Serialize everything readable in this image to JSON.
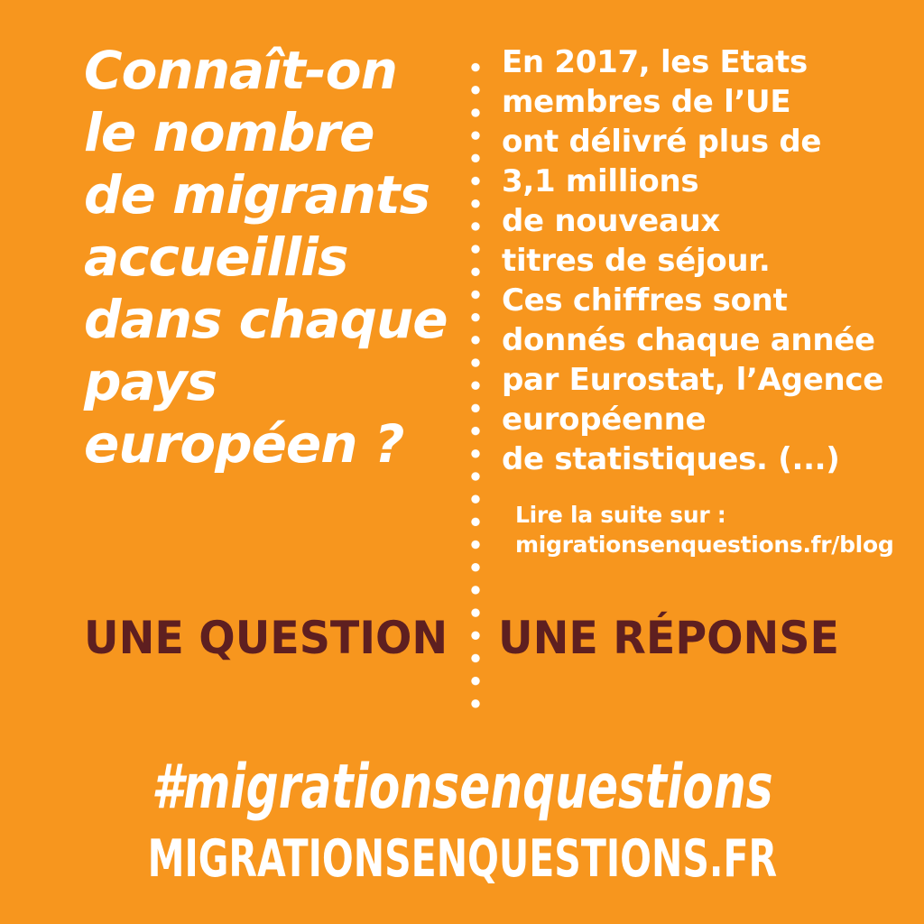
{
  "colors": {
    "background": "#F7961E",
    "text_light": "#FFFFFF",
    "text_dark": "#5E1F20"
  },
  "left_column": {
    "question": "Connaît-on\nle nombre\nde migrants\naccueillis\ndans chaque\npays\neuropéen ?"
  },
  "right_column": {
    "answer": "En 2017, les Etats\nmembres de l’UE\nont délivré plus de\n3,1 millions\nde nouveaux\ntitres de séjour.\nCes chiffres sont\ndonnés chaque année\npar Eurostat, l’Agence\neuropéenne\nde statistiques. (...)",
    "read_more_label": "Lire la suite sur :",
    "read_more_url": "migrationsenquestions.fr/blog"
  },
  "footer": {
    "left_label": "UNE QUESTION",
    "right_label": "UNE RÉPONSE",
    "hashtag": "#migrationsenquestions",
    "site_url": "MIGRATIONSENQUESTIONS.FR"
  }
}
